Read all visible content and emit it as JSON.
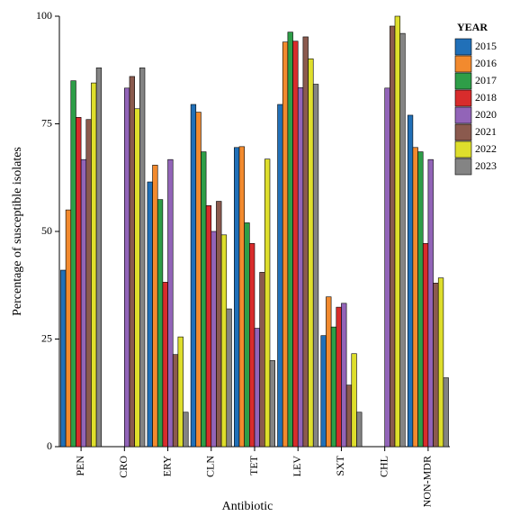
{
  "chart_data": {
    "type": "bar",
    "x_label": "Antibiotic",
    "y_label": "Percentage of susceptible isolates",
    "legend_title": "YEAR",
    "legend": "right",
    "categories": [
      "PEN",
      "CRO",
      "ERY",
      "CLN",
      "TET",
      "LEV",
      "SXT",
      "CHL",
      "NON-MDR"
    ],
    "series": [
      {
        "name": "2015",
        "color": "#2170b8",
        "values": [
          41,
          null,
          61.5,
          79.5,
          69.5,
          79.5,
          25.8,
          null,
          77
        ]
      },
      {
        "name": "2016",
        "color": "#f28a2e",
        "values": [
          55,
          null,
          65.4,
          77.7,
          69.7,
          94,
          34.8,
          null,
          69.5
        ]
      },
      {
        "name": "2017",
        "color": "#2e9e48",
        "values": [
          85,
          null,
          57.4,
          68.5,
          52,
          96.3,
          27.8,
          null,
          68.5
        ]
      },
      {
        "name": "2018",
        "color": "#d82c2c",
        "values": [
          76.5,
          null,
          38.2,
          56,
          47.2,
          94.2,
          32.4,
          null,
          47.2
        ]
      },
      {
        "name": "2020",
        "color": "#9264b8",
        "values": [
          66.7,
          83.3,
          66.7,
          50,
          27.5,
          83.4,
          33.3,
          83.3,
          66.7
        ]
      },
      {
        "name": "2021",
        "color": "#8b5a4e",
        "values": [
          76,
          86,
          21.4,
          57,
          40.5,
          95.2,
          14.3,
          97.7,
          38
        ]
      },
      {
        "name": "2022",
        "color": "#dede2c",
        "values": [
          84.5,
          78.5,
          25.5,
          49.2,
          66.8,
          90.1,
          21.6,
          100,
          39.2
        ]
      },
      {
        "name": "2023",
        "color": "#848484",
        "values": [
          88,
          88,
          8,
          32,
          20,
          84.2,
          8,
          96,
          16
        ]
      }
    ],
    "ylim": [
      0,
      100
    ],
    "yticks": [
      0,
      25,
      50,
      75,
      100
    ]
  }
}
